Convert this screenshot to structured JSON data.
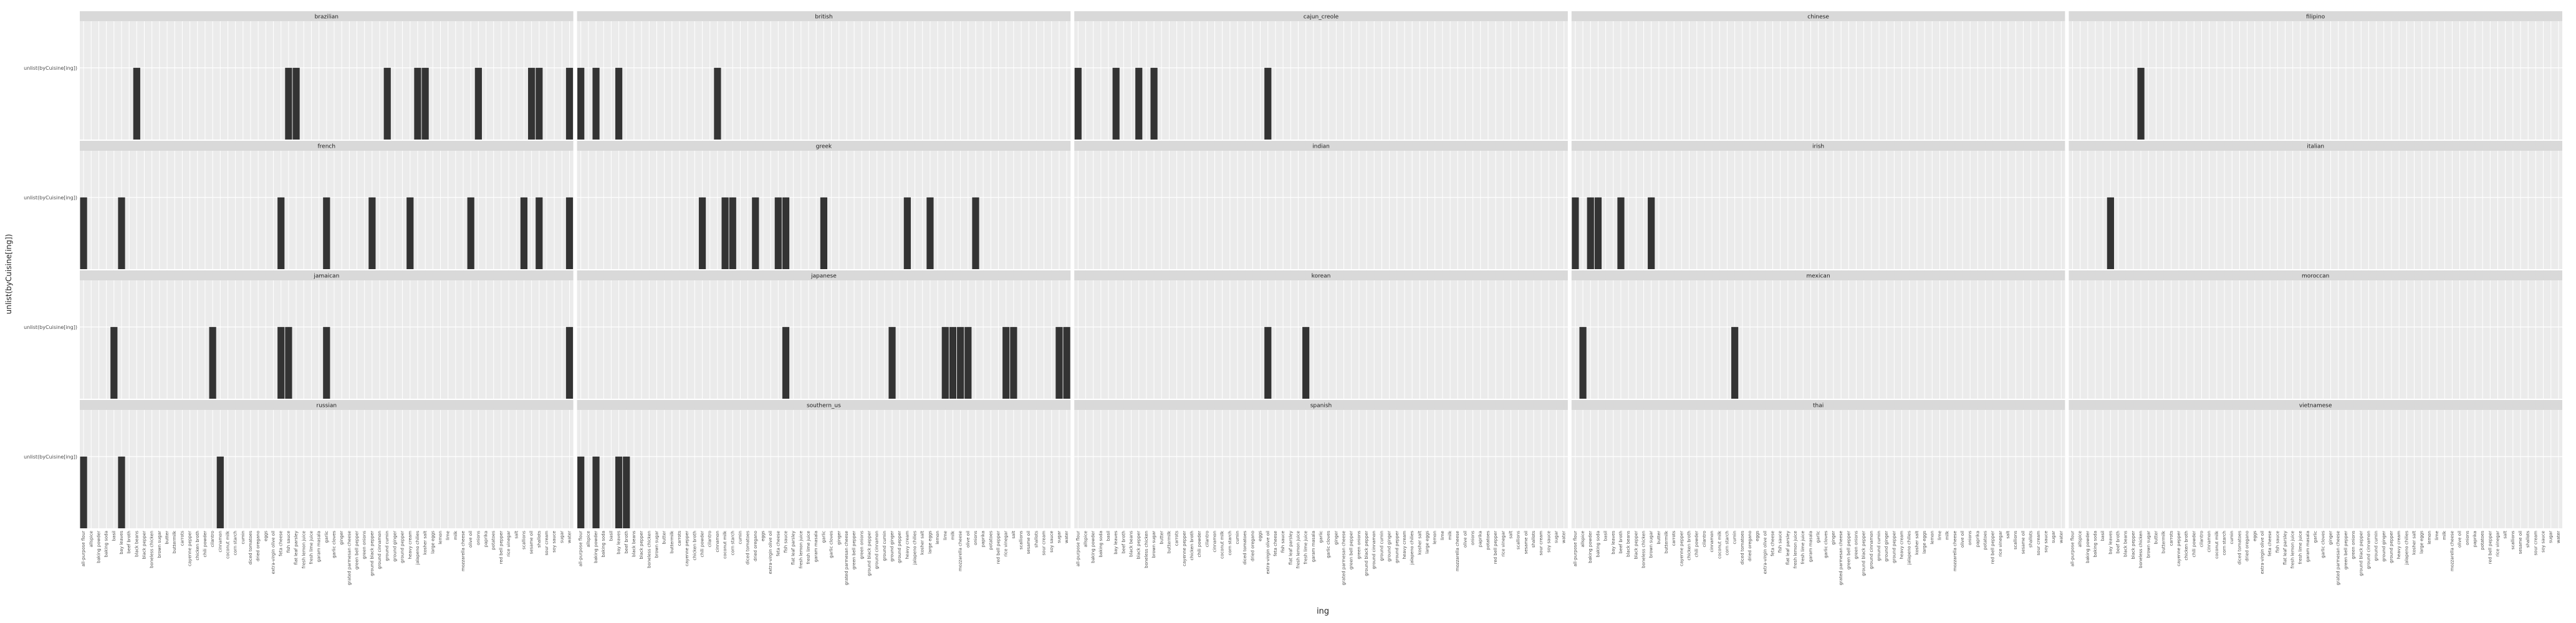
{
  "chart_data": {
    "type": "bar",
    "xlabel": "ing",
    "ylabel": "unlist(byCuisine[ing])",
    "y_tick_label": "unlist(byCuisine[ing])",
    "panels": [
      {
        "name": "brazilian",
        "values": [
          0,
          0,
          0,
          0,
          0,
          0,
          0,
          1,
          0,
          0,
          0,
          0,
          0,
          0,
          0,
          0,
          0,
          0,
          0,
          0,
          0,
          0,
          0,
          0,
          0,
          0,
          0,
          1,
          1,
          0,
          0,
          0,
          0,
          0,
          0,
          0,
          0,
          0,
          0,
          0,
          1,
          0,
          0,
          0,
          1,
          1,
          0,
          0,
          0,
          0,
          0,
          0,
          1,
          0,
          0,
          0,
          0,
          0,
          0,
          1,
          1,
          0,
          0,
          0,
          1
        ]
      },
      {
        "name": "british",
        "values": [
          1,
          0,
          1,
          0,
          0,
          1,
          0,
          0,
          0,
          0,
          0,
          0,
          0,
          0,
          0,
          0,
          0,
          0,
          1,
          0,
          0,
          0,
          0,
          0,
          0,
          0,
          0,
          0,
          0,
          0,
          0,
          0,
          0,
          0,
          0,
          0,
          0,
          0,
          0,
          0,
          0,
          0,
          0,
          0,
          0,
          0,
          0,
          0,
          0,
          0,
          0,
          0,
          0,
          0,
          0,
          0,
          0,
          0,
          0,
          0,
          0,
          0,
          0,
          0,
          0
        ]
      },
      {
        "name": "cajun_creole",
        "values": [
          1,
          0,
          0,
          0,
          0,
          1,
          0,
          0,
          1,
          0,
          1,
          0,
          0,
          0,
          0,
          0,
          0,
          0,
          0,
          0,
          0,
          0,
          0,
          0,
          0,
          1,
          0,
          0,
          0,
          0,
          0,
          0,
          0,
          0,
          0,
          0,
          0,
          0,
          0,
          0,
          0,
          0,
          0,
          0,
          0,
          0,
          0,
          0,
          0,
          0,
          0,
          0,
          0,
          0,
          0,
          0,
          0,
          0,
          0,
          0,
          0,
          0,
          0,
          0,
          0
        ]
      },
      {
        "name": "chinese",
        "values": [
          0,
          0,
          0,
          0,
          0,
          0,
          0,
          0,
          0,
          0,
          0,
          0,
          0,
          0,
          0,
          0,
          0,
          0,
          0,
          0,
          0,
          0,
          0,
          0,
          0,
          0,
          0,
          0,
          0,
          0,
          0,
          0,
          0,
          0,
          0,
          0,
          0,
          0,
          0,
          0,
          0,
          0,
          0,
          0,
          0,
          0,
          0,
          0,
          0,
          0,
          0,
          0,
          0,
          0,
          0,
          0,
          0,
          0,
          0,
          0,
          0,
          0,
          0,
          0,
          0
        ]
      },
      {
        "name": "filipino",
        "values": [
          0,
          0,
          0,
          0,
          0,
          0,
          0,
          0,
          0,
          1,
          0,
          0,
          0,
          0,
          0,
          0,
          0,
          0,
          0,
          0,
          0,
          0,
          0,
          0,
          0,
          0,
          0,
          0,
          0,
          0,
          0,
          0,
          0,
          0,
          0,
          0,
          0,
          0,
          0,
          0,
          0,
          0,
          0,
          0,
          0,
          0,
          0,
          0,
          0,
          0,
          0,
          0,
          0,
          0,
          0,
          0,
          0,
          0,
          0,
          0,
          0,
          0,
          0,
          0,
          0
        ]
      },
      {
        "name": "french",
        "values": [
          1,
          0,
          0,
          0,
          0,
          1,
          0,
          0,
          0,
          0,
          0,
          0,
          0,
          0,
          0,
          0,
          0,
          0,
          0,
          0,
          0,
          0,
          0,
          0,
          0,
          0,
          1,
          0,
          0,
          0,
          0,
          0,
          1,
          0,
          0,
          0,
          0,
          0,
          1,
          0,
          0,
          0,
          0,
          1,
          0,
          0,
          0,
          0,
          0,
          0,
          0,
          1,
          0,
          0,
          0,
          0,
          0,
          0,
          1,
          0,
          1,
          0,
          0,
          0,
          1
        ]
      },
      {
        "name": "greek",
        "values": [
          0,
          0,
          0,
          0,
          0,
          0,
          0,
          0,
          0,
          0,
          0,
          0,
          0,
          0,
          0,
          0,
          1,
          0,
          0,
          1,
          1,
          0,
          0,
          1,
          0,
          0,
          1,
          1,
          0,
          0,
          0,
          0,
          1,
          0,
          0,
          0,
          0,
          0,
          0,
          0,
          0,
          0,
          0,
          1,
          0,
          0,
          1,
          0,
          0,
          0,
          0,
          0,
          1,
          0,
          0,
          0,
          0,
          0,
          0,
          0,
          0,
          0,
          0,
          0,
          0
        ]
      },
      {
        "name": "indian",
        "values": [
          0,
          0,
          0,
          0,
          0,
          0,
          0,
          0,
          0,
          0,
          0,
          0,
          0,
          0,
          0,
          0,
          0,
          0,
          0,
          0,
          0,
          0,
          0,
          0,
          0,
          0,
          0,
          0,
          0,
          0,
          0,
          0,
          0,
          0,
          0,
          0,
          0,
          0,
          0,
          0,
          0,
          0,
          0,
          0,
          0,
          0,
          0,
          0,
          0,
          0,
          0,
          0,
          0,
          0,
          0,
          0,
          0,
          0,
          0,
          0,
          0,
          0,
          0,
          0,
          0
        ]
      },
      {
        "name": "irish",
        "values": [
          1,
          0,
          1,
          1,
          0,
          0,
          1,
          0,
          0,
          0,
          1,
          0,
          0,
          0,
          0,
          0,
          0,
          0,
          0,
          0,
          0,
          0,
          0,
          0,
          0,
          0,
          0,
          0,
          0,
          0,
          0,
          0,
          0,
          0,
          0,
          0,
          0,
          0,
          0,
          0,
          0,
          0,
          0,
          0,
          0,
          0,
          0,
          0,
          0,
          0,
          0,
          0,
          0,
          0,
          0,
          0,
          0,
          0,
          0,
          0,
          0,
          0,
          0,
          0,
          0
        ]
      },
      {
        "name": "italian",
        "values": [
          0,
          0,
          0,
          0,
          0,
          1,
          0,
          0,
          0,
          0,
          0,
          0,
          0,
          0,
          0,
          0,
          0,
          0,
          0,
          0,
          0,
          0,
          0,
          0,
          0,
          0,
          0,
          0,
          0,
          0,
          0,
          0,
          0,
          0,
          0,
          0,
          0,
          0,
          0,
          0,
          0,
          0,
          0,
          0,
          0,
          0,
          0,
          0,
          0,
          0,
          0,
          0,
          0,
          0,
          0,
          0,
          0,
          0,
          0,
          0,
          0,
          0,
          0,
          0,
          0
        ]
      },
      {
        "name": "jamaican",
        "values": [
          0,
          0,
          0,
          0,
          1,
          0,
          0,
          0,
          0,
          0,
          0,
          0,
          0,
          0,
          0,
          0,
          0,
          1,
          0,
          0,
          0,
          0,
          0,
          0,
          0,
          0,
          1,
          1,
          0,
          0,
          0,
          0,
          1,
          0,
          0,
          0,
          0,
          0,
          0,
          0,
          0,
          0,
          0,
          0,
          0,
          0,
          0,
          0,
          0,
          0,
          0,
          0,
          0,
          0,
          0,
          0,
          0,
          0,
          0,
          0,
          0,
          0,
          0,
          0,
          1
        ]
      },
      {
        "name": "japanese",
        "values": [
          0,
          0,
          0,
          0,
          0,
          0,
          0,
          0,
          0,
          0,
          0,
          0,
          0,
          0,
          0,
          0,
          0,
          0,
          0,
          0,
          0,
          0,
          0,
          0,
          0,
          0,
          0,
          1,
          0,
          0,
          0,
          0,
          0,
          0,
          0,
          0,
          0,
          0,
          0,
          0,
          0,
          1,
          0,
          0,
          0,
          0,
          0,
          0,
          1,
          1,
          1,
          1,
          0,
          0,
          0,
          0,
          1,
          1,
          0,
          0,
          0,
          0,
          0,
          1,
          1
        ]
      },
      {
        "name": "korean",
        "values": [
          0,
          0,
          0,
          0,
          0,
          0,
          0,
          0,
          0,
          0,
          0,
          0,
          0,
          0,
          0,
          0,
          0,
          0,
          0,
          0,
          0,
          0,
          0,
          0,
          0,
          1,
          0,
          0,
          0,
          0,
          1,
          0,
          0,
          0,
          0,
          0,
          0,
          0,
          0,
          0,
          0,
          0,
          0,
          0,
          0,
          0,
          0,
          0,
          0,
          0,
          0,
          0,
          0,
          0,
          0,
          0,
          0,
          0,
          0,
          0,
          0,
          0,
          0,
          0,
          0
        ]
      },
      {
        "name": "mexican",
        "values": [
          0,
          1,
          0,
          0,
          0,
          0,
          0,
          0,
          0,
          0,
          0,
          0,
          0,
          0,
          0,
          0,
          0,
          0,
          0,
          0,
          0,
          1,
          0,
          0,
          0,
          0,
          0,
          0,
          0,
          0,
          0,
          0,
          0,
          0,
          0,
          0,
          0,
          0,
          0,
          0,
          0,
          0,
          0,
          0,
          0,
          0,
          0,
          0,
          0,
          0,
          0,
          0,
          0,
          0,
          0,
          0,
          0,
          0,
          0,
          0,
          0,
          0,
          0,
          0,
          0
        ]
      },
      {
        "name": "moroccan",
        "values": [
          0,
          0,
          0,
          0,
          0,
          0,
          0,
          0,
          0,
          0,
          0,
          0,
          0,
          0,
          0,
          0,
          0,
          0,
          0,
          0,
          0,
          0,
          0,
          0,
          0,
          0,
          0,
          0,
          0,
          0,
          0,
          0,
          0,
          0,
          0,
          0,
          0,
          0,
          0,
          0,
          0,
          0,
          0,
          0,
          0,
          0,
          0,
          0,
          0,
          0,
          0,
          0,
          0,
          0,
          0,
          0,
          0,
          0,
          0,
          0,
          0,
          0,
          0,
          0,
          0
        ]
      },
      {
        "name": "russian",
        "values": [
          1,
          0,
          0,
          0,
          0,
          1,
          0,
          0,
          0,
          0,
          0,
          0,
          0,
          0,
          0,
          0,
          0,
          0,
          1,
          0,
          0,
          0,
          0,
          0,
          0,
          0,
          0,
          0,
          0,
          0,
          0,
          0,
          0,
          0,
          0,
          0,
          0,
          0,
          0,
          0,
          0,
          0,
          0,
          0,
          0,
          0,
          0,
          0,
          0,
          0,
          0,
          0,
          0,
          0,
          0,
          0,
          0,
          0,
          0,
          0,
          0,
          0,
          0,
          0,
          0
        ]
      },
      {
        "name": "southern_us",
        "values": [
          1,
          0,
          1,
          0,
          0,
          1,
          1,
          0,
          0,
          0,
          0,
          0,
          0,
          0,
          0,
          0,
          0,
          0,
          0,
          0,
          0,
          0,
          0,
          0,
          0,
          0,
          0,
          0,
          0,
          0,
          0,
          0,
          0,
          0,
          0,
          0,
          0,
          0,
          0,
          0,
          0,
          0,
          0,
          0,
          0,
          0,
          0,
          0,
          0,
          0,
          0,
          0,
          0,
          0,
          0,
          0,
          0,
          0,
          0,
          0,
          0,
          0,
          0,
          0,
          0
        ]
      },
      {
        "name": "spanish",
        "values": [
          0,
          0,
          0,
          0,
          0,
          0,
          0,
          0,
          0,
          0,
          0,
          0,
          0,
          0,
          0,
          0,
          0,
          0,
          0,
          0,
          0,
          0,
          0,
          0,
          0,
          0,
          0,
          0,
          0,
          0,
          0,
          0,
          0,
          0,
          0,
          0,
          0,
          0,
          0,
          0,
          0,
          0,
          0,
          0,
          0,
          0,
          0,
          0,
          0,
          0,
          0,
          0,
          0,
          0,
          0,
          0,
          0,
          0,
          0,
          0,
          0,
          0,
          0,
          0,
          0
        ]
      },
      {
        "name": "thai",
        "values": [
          0,
          0,
          0,
          0,
          0,
          0,
          0,
          0,
          0,
          0,
          0,
          0,
          0,
          0,
          0,
          0,
          0,
          0,
          0,
          0,
          0,
          0,
          0,
          0,
          0,
          0,
          0,
          0,
          0,
          0,
          0,
          0,
          0,
          0,
          0,
          0,
          0,
          0,
          0,
          0,
          0,
          0,
          0,
          0,
          0,
          0,
          0,
          0,
          0,
          0,
          0,
          0,
          0,
          0,
          0,
          0,
          0,
          0,
          0,
          0,
          0,
          0,
          0,
          0,
          0
        ]
      },
      {
        "name": "vietnamese",
        "values": [
          0,
          0,
          0,
          0,
          0,
          0,
          0,
          0,
          0,
          0,
          0,
          0,
          0,
          0,
          0,
          0,
          0,
          0,
          0,
          0,
          0,
          0,
          0,
          0,
          0,
          0,
          0,
          0,
          0,
          0,
          0,
          0,
          0,
          0,
          0,
          0,
          0,
          0,
          0,
          0,
          0,
          0,
          0,
          0,
          0,
          0,
          0,
          0,
          0,
          0,
          0,
          0,
          0,
          0,
          0,
          0,
          0,
          0,
          0,
          0,
          0,
          0,
          0,
          0,
          0
        ]
      }
    ],
    "bar_positions_note": "",
    "categories": [
      "all-purpose flour",
      "allspice",
      "baking powder",
      "baking soda",
      "basil",
      "bay leaves",
      "beef broth",
      "black beans",
      "black pepper",
      "boneless chicken",
      "brown sugar",
      "butter",
      "buttermilk",
      "carrots",
      "cayenne pepper",
      "chicken broth",
      "chili powder",
      "cilantro",
      "cinnamon",
      "coconut milk",
      "corn starch",
      "cumin",
      "diced tomatoes",
      "dried oregano",
      "eggs",
      "extra-virgin olive oil",
      "feta cheese",
      "fish sauce",
      "flat leaf parsley",
      "fresh lemon juice",
      "fresh lime juice",
      "garam masala",
      "garlic",
      "garlic cloves",
      "ginger",
      "grated parmesan cheese",
      "green bell pepper",
      "green onions",
      "ground black pepper",
      "ground cinnamon",
      "ground cumin",
      "ground ginger",
      "ground pepper",
      "heavy cream",
      "jalapeno chilies",
      "kosher salt",
      "large eggs",
      "lemon",
      "lime",
      "milk",
      "mozzarella cheese",
      "olive oil",
      "onions",
      "paprika",
      "potatoes",
      "red bell pepper",
      "rice vinegar",
      "salt",
      "scallions",
      "sesame oil",
      "shallots",
      "sour cream",
      "soy sauce",
      "sugar",
      "water"
    ]
  }
}
